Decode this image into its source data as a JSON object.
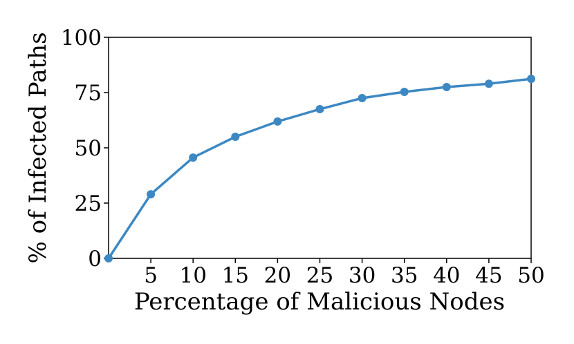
{
  "chart_data": {
    "type": "line",
    "xlabel": "Percentage of Malicious Nodes",
    "ylabel": "% of Infected Paths",
    "x": [
      0,
      5,
      10,
      15,
      20,
      25,
      30,
      35,
      40,
      45,
      50
    ],
    "series": [
      {
        "color": "#3d88c2",
        "values": [
          0,
          29,
          45.6,
          55,
          61.9,
          67.5,
          72.5,
          75.3,
          77.5,
          79,
          81.2
        ]
      }
    ],
    "xlim": [
      0,
      50
    ],
    "xticks": [
      5,
      10,
      15,
      20,
      25,
      30,
      35,
      40,
      45,
      50
    ],
    "ylim": [
      0,
      100
    ],
    "yticks": [
      0,
      25,
      50,
      75,
      100
    ],
    "grid": false
  }
}
